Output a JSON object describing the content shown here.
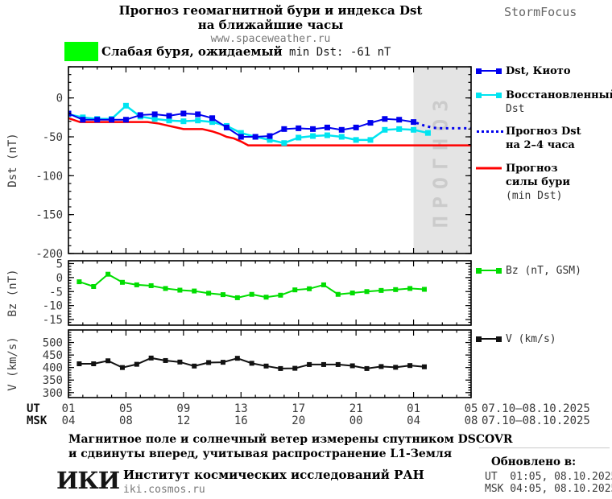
{
  "header": {
    "title_line1": "Прогноз геомагнитной бури и индекса Dst",
    "title_line2": "на ближайшие часы",
    "website": "www.spaceweather.ru",
    "brand": "StormFocus"
  },
  "storm_banner": {
    "swatch_color": "#00FF00",
    "text_ru": "Слабая буря, ожидаемый",
    "text_latin": " min Dst: -61 nT"
  },
  "legend": {
    "items": [
      {
        "lines": [
          "Dst, Киото"
        ],
        "color": "#0000EE",
        "marker": "line-squares"
      },
      {
        "lines": [
          "Восстановленный",
          "Dst"
        ],
        "color": "#00E4F0",
        "marker": "line-squares"
      },
      {
        "lines": [
          "Прогноз Dst",
          "на 2–4 часа"
        ],
        "color": "#0000EE",
        "marker": "dotted"
      },
      {
        "lines": [
          "Прогноз",
          "силы бури",
          "(min Dst)"
        ],
        "color": "#FF0000",
        "marker": "line"
      },
      {
        "lines": [
          "Bz (nT, GSM)"
        ],
        "color": "#00DD00",
        "marker": "line-squares"
      },
      {
        "lines": [
          "V (km/s)"
        ],
        "color": "#111111",
        "marker": "line-squares"
      }
    ]
  },
  "chart_data": {
    "type": "line",
    "x_axis": {
      "range_hours": [
        0,
        28
      ],
      "tick_step": 4,
      "minor_step": 1,
      "rows": [
        {
          "caption": "UT",
          "labels": [
            "01",
            "05",
            "09",
            "13",
            "17",
            "21",
            "01",
            "05"
          ],
          "date": "07.10–08.10.2025"
        },
        {
          "caption": "MSK",
          "labels": [
            "04",
            "08",
            "12",
            "16",
            "20",
            "00",
            "04",
            "08"
          ],
          "date": "07.10–08.10.2025"
        }
      ]
    },
    "panels": [
      {
        "id": "dst",
        "ylabel": "Dst (nT)",
        "ylim": [
          -200,
          40
        ],
        "yticks": [
          0,
          -50,
          -100,
          -150,
          -200
        ],
        "minor_step": 10,
        "forecast_band": {
          "start_hour": 24,
          "end_hour": 28,
          "label": "ПРОГНОЗ",
          "fill": "#E4E4E4",
          "text_color": "#CBCBCB"
        },
        "series": [
          {
            "name": "Прогноз силы бури (min Dst)",
            "color": "#FF0000",
            "width": 2.5,
            "x": [
              0,
              0.8,
              5.5,
              6.3,
              7,
              7.5,
              8,
              9.3,
              10,
              10.5,
              11,
              11.5,
              12,
              12.5,
              28
            ],
            "y": [
              -26,
              -31,
              -31,
              -33,
              -36,
              -38,
              -40,
              -40,
              -43,
              -46,
              -50,
              -52,
              -56,
              -61,
              -61
            ]
          },
          {
            "name": "Восстановленный Dst",
            "color": "#00E4F0",
            "width": 2.5,
            "marker": 7,
            "x0": 0,
            "dx": 1,
            "y": [
              -21,
              -25,
              -27,
              -27,
              -10,
              -24,
              -27,
              -29,
              -30,
              -29,
              -31,
              -36,
              -45,
              -50,
              -54,
              -58,
              -51,
              -49,
              -48,
              -50,
              -54,
              -54,
              -41,
              -40,
              -41,
              -45
            ]
          },
          {
            "name": "Dst, Киото",
            "color": "#0000EE",
            "width": 2,
            "marker": 7,
            "x0": 0,
            "dx": 1,
            "y": [
              -20,
              -28,
              -28,
              -28,
              -28,
              -22,
              -21,
              -23,
              -20,
              -21,
              -26,
              -38,
              -50,
              -50,
              -49,
              -40,
              -39,
              -40,
              -38,
              -41,
              -38,
              -32,
              -27,
              -28,
              -31
            ]
          },
          {
            "name": "Прогноз Dst на 2–4 часа",
            "color": "#0000EE",
            "width": 3,
            "dash": "3 4.5",
            "x": [
              24.2,
              24.8,
              25.4,
              26,
              28
            ],
            "y": [
              -32,
              -36,
              -38.5,
              -39,
              -39
            ]
          }
        ]
      },
      {
        "id": "bz",
        "ylabel": "Bz (nT)",
        "ylim": [
          -17,
          6
        ],
        "yticks": [
          5,
          0,
          -5,
          -10,
          -15
        ],
        "minor_step": 1,
        "series": [
          {
            "name": "Bz (nT, GSM)",
            "color": "#00DD00",
            "width": 2,
            "marker": 6,
            "x0": 0.75,
            "dx": 1,
            "y": [
              -1.5,
              -3.2,
              1.2,
              -1.7,
              -2.6,
              -2.9,
              -3.9,
              -4.5,
              -4.8,
              -5.6,
              -6.1,
              -7.2,
              -6.0,
              -7.0,
              -6.3,
              -4.4,
              -4.0,
              -2.6,
              -6.0,
              -5.5,
              -5.0,
              -4.6,
              -4.3,
              -3.9,
              -4.2
            ]
          }
        ]
      },
      {
        "id": "v",
        "ylabel": "V (km/s)",
        "ylim": [
          280,
          550
        ],
        "yticks": [
          300,
          350,
          400,
          450,
          500
        ],
        "minor_step": 10,
        "series": [
          {
            "name": "V (km/s)",
            "color": "#111111",
            "width": 2,
            "marker": 6,
            "x0": 0.75,
            "dx": 1,
            "y": [
              415,
              415,
              427,
              400,
              413,
              438,
              428,
              422,
              406,
              420,
              421,
              437,
              417,
              406,
              396,
              397,
              412,
              412,
              412,
              407,
              396,
              404,
              401,
              408,
              403
            ]
          }
        ]
      }
    ]
  },
  "footnote": {
    "line1": "Магнитное поле и солнечный ветер измерены спутником DSCOVR",
    "line2": "и сдвинуты вперед, учитывая распространение L1-Земля"
  },
  "org": {
    "logo": "ИКИ",
    "name": "Институт космических исследований РАН",
    "site": "iki.cosmos.ru"
  },
  "updated": {
    "heading": "Обновлено в:",
    "ut": "UT  01:05, 08.10.2025",
    "msk": "MSK 04:05, 08.10.2025"
  },
  "colors": {
    "dst_kyoto": "#0000EE",
    "dst_restored": "#00E4F0",
    "dst_forecast": "#0000EE",
    "storm_forecast": "#FF0000",
    "bz": "#00DD00",
    "v": "#111111",
    "forecast_band": "#E4E4E4",
    "storm_level": "#00FF00"
  }
}
